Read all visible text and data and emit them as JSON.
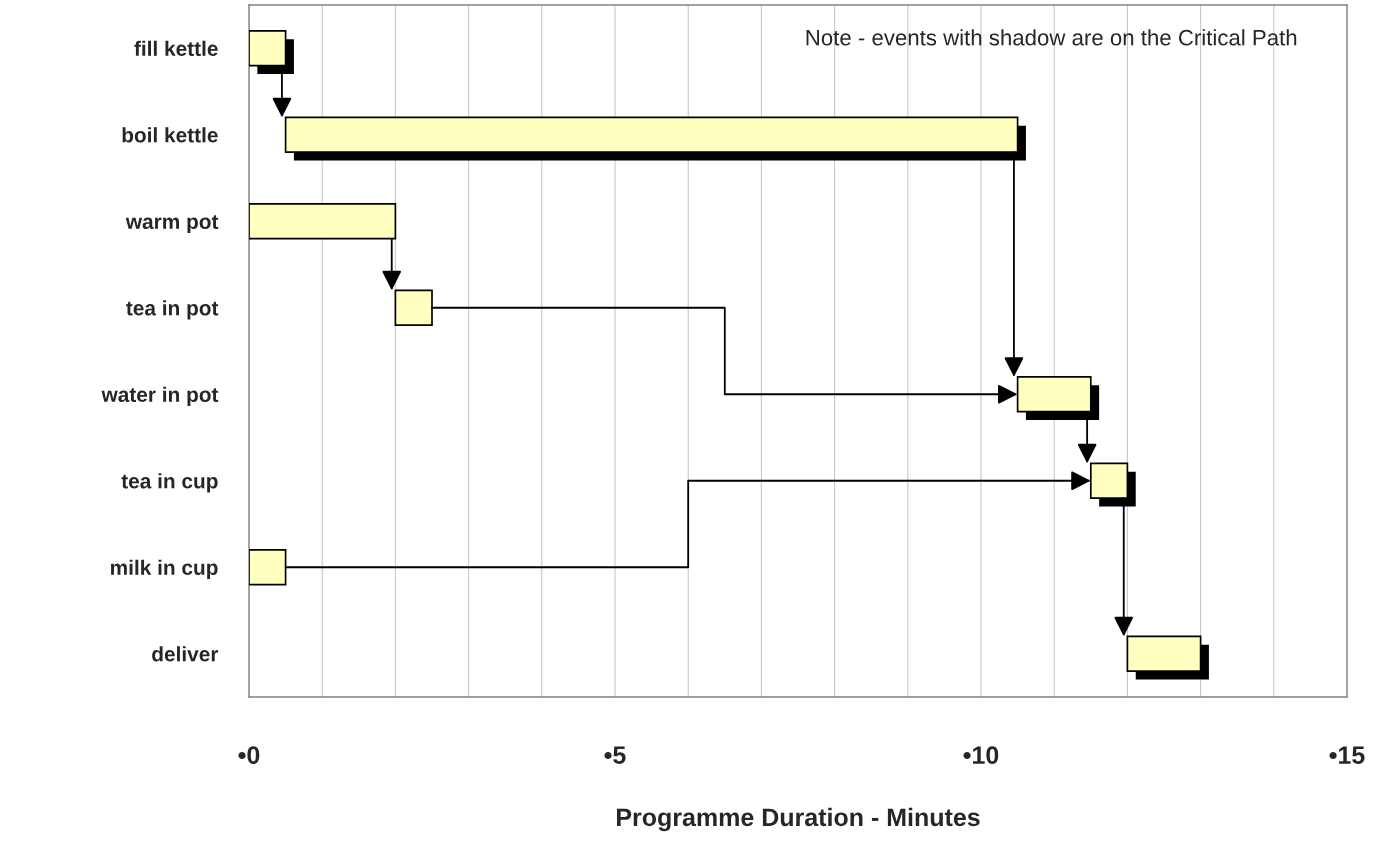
{
  "chart_data": {
    "type": "bar",
    "orientation": "horizontal",
    "xlabel": "Programme Duration - Minutes",
    "categories": [
      "fill kettle",
      "boil kettle",
      "warm pot",
      "tea in pot",
      "water in pot",
      "tea in cup",
      "milk in cup",
      "deliver"
    ],
    "series": [
      {
        "color": "#ffffc0",
        "base": [
          0,
          0.5,
          null,
          null,
          10.5,
          11.5,
          null,
          12
        ],
        "values": [
          0.5,
          10,
          null,
          null,
          1,
          0.5,
          null,
          1
        ]
      },
      {
        "color": "#ffffc0",
        "base": [
          null,
          null,
          0,
          2,
          null,
          null,
          0,
          null
        ],
        "values": [
          null,
          null,
          2,
          0.5,
          null,
          null,
          0.5,
          null
        ]
      }
    ],
    "xlim": [
      0,
      15
    ],
    "xticks": [
      {
        "value": 0,
        "label": "•0"
      },
      {
        "value": 1,
        "label": null
      },
      {
        "value": 2,
        "label": null
      },
      {
        "value": 3,
        "label": null
      },
      {
        "value": 4,
        "label": null
      },
      {
        "value": 5,
        "label": "•5"
      },
      {
        "value": 6,
        "label": null
      },
      {
        "value": 7,
        "label": null
      },
      {
        "value": 8,
        "label": null
      },
      {
        "value": 9,
        "label": null
      },
      {
        "value": 10,
        "label": "•10"
      },
      {
        "value": 11,
        "label": null
      },
      {
        "value": 12,
        "label": null
      },
      {
        "value": 13,
        "label": null
      },
      {
        "value": 14,
        "label": null
      },
      {
        "value": 15,
        "label": "•15"
      }
    ],
    "grid": "x",
    "legend": false,
    "annotations": [
      "Note - events with shadow are on the Critical Path"
    ]
  }
}
